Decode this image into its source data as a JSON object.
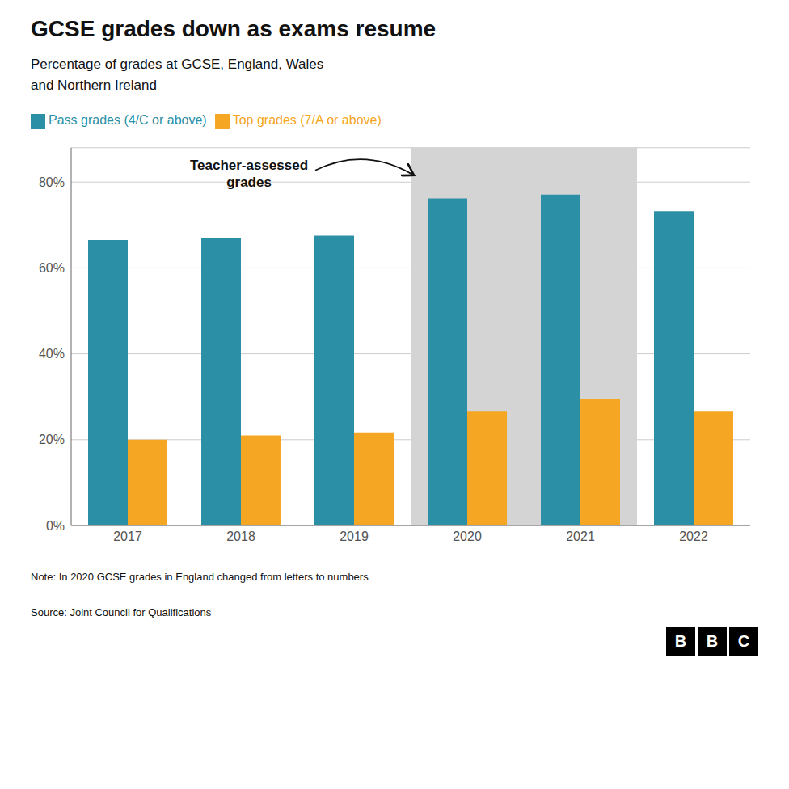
{
  "chart_data": {
    "type": "bar",
    "title": "GCSE grades down as exams resume",
    "subtitle": "Percentage of grades at GCSE, England, Wales\nand Northern Ireland",
    "categories": [
      "2017",
      "2018",
      "2019",
      "2020",
      "2021",
      "2022"
    ],
    "series": [
      {
        "name": "Pass grades (4/C or above)",
        "color": "#2B8FA6",
        "values": [
          66.5,
          67.0,
          67.5,
          76.2,
          77.1,
          73.2
        ]
      },
      {
        "name": "Top grades (7/A or above)",
        "color": "#F5A623",
        "values": [
          20.0,
          21.0,
          21.5,
          26.5,
          29.5,
          26.5
        ]
      }
    ],
    "ylim": [
      0,
      88
    ],
    "yticks": [
      {
        "value": 0,
        "label": "0%"
      },
      {
        "value": 20,
        "label": "20%"
      },
      {
        "value": 40,
        "label": "40%"
      },
      {
        "value": 60,
        "label": "60%"
      },
      {
        "value": 80,
        "label": "80%"
      }
    ],
    "grid": true,
    "legend": "top-left",
    "annotations": [
      {
        "text": "Teacher-assessed\ngrades",
        "categories": [
          "2020",
          "2021"
        ],
        "color": "#d4d4d4"
      }
    ],
    "note": "Note: In 2020 GCSE grades in England changed from letters to numbers",
    "source": "Source: Joint Council for Qualifications",
    "logo": "BBC"
  }
}
